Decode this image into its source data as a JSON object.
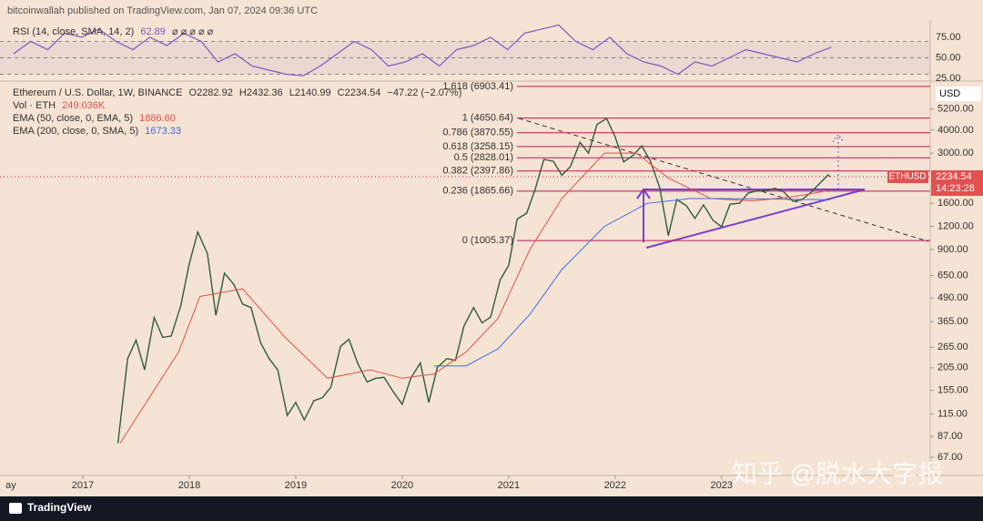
{
  "header": "bitcoinwallah published on TradingView.com, Jan 07, 2024 09:36 UTC",
  "footer": "TradingView",
  "watermark": "知乎 @脱水大字报",
  "chart_data": [
    {
      "type": "line",
      "log_scale": true,
      "ohlc": [
        "O2282.92",
        "H2432.36",
        "L2140.99",
        "C2234.54",
        "−47.22 (−2.07%)"
      ],
      "volume_title": "Vol · ETH",
      "volume_label": "249.036K",
      "currency": "USD",
      "symbol": "ETHUSD",
      "countdown": "14:23:28",
      "price_value": 2234.54,
      "price_label": "2234.54",
      "xlim": [
        2016.29,
        2024.96
      ],
      "xticks": [
        2017,
        2018,
        2019,
        2020,
        2021,
        2022,
        2023
      ],
      "xtick_partial": "ay",
      "ylim": [
        53.4,
        7300
      ],
      "yticks": [
        {
          "value": 5200,
          "label": "5200.00"
        },
        {
          "value": 4000,
          "label": "4000.00"
        },
        {
          "value": 3000,
          "label": "3000.00"
        },
        {
          "value": 1600,
          "label": "1600.00"
        },
        {
          "value": 1200,
          "label": "1200.00"
        },
        {
          "value": 900,
          "label": "900.00"
        },
        {
          "value": 650,
          "label": "650.00"
        },
        {
          "value": 490,
          "label": "490.00"
        },
        {
          "value": 365,
          "label": "365.00"
        },
        {
          "value": 265,
          "label": "265.00"
        },
        {
          "value": 205,
          "label": "205.00"
        },
        {
          "value": 155,
          "label": "155.00"
        },
        {
          "value": 115,
          "label": "115.00"
        },
        {
          "value": 87,
          "label": "87.00"
        },
        {
          "value": 67,
          "label": "67.00"
        }
      ],
      "levels": [
        {
          "value": 6903.41,
          "label": "1.618 (6903.41)"
        },
        {
          "value": 4650.64,
          "label": "1 (4650.64)"
        },
        {
          "value": 3870.55,
          "label": "0.786 (3870.55)"
        },
        {
          "value": 3258.15,
          "label": "0.618 (3258.15)"
        },
        {
          "value": 2828.01,
          "label": "0.5 (2828.01)"
        },
        {
          "value": 2397.86,
          "label": "0.382 (2397.86)"
        },
        {
          "value": 1865.66,
          "label": "0.236 (1865.66)"
        },
        {
          "value": 1005.37,
          "label": "0 (1005.37)"
        }
      ],
      "series": [
        {
          "name": "Ethereum / U.S. Dollar, 1W, BINANCE",
          "color": "#2f5d3a",
          "x": [
            2017.33,
            2017.42,
            2017.5,
            2017.58,
            2017.67,
            2017.75,
            2017.83,
            2017.92,
            2018.0,
            2018.08,
            2018.17,
            2018.25,
            2018.33,
            2018.42,
            2018.5,
            2018.58,
            2018.67,
            2018.75,
            2018.83,
            2018.92,
            2019.0,
            2019.08,
            2019.17,
            2019.25,
            2019.33,
            2019.42,
            2019.5,
            2019.58,
            2019.67,
            2019.75,
            2019.83,
            2019.92,
            2020.0,
            2020.08,
            2020.17,
            2020.25,
            2020.33,
            2020.42,
            2020.5,
            2020.58,
            2020.67,
            2020.75,
            2020.83,
            2020.92,
            2021.0,
            2021.08,
            2021.17,
            2021.25,
            2021.33,
            2021.42,
            2021.5,
            2021.58,
            2021.67,
            2021.75,
            2021.83,
            2021.92,
            2022.0,
            2022.08,
            2022.17,
            2022.25,
            2022.33,
            2022.42,
            2022.5,
            2022.58,
            2022.67,
            2022.75,
            2022.83,
            2022.92,
            2023.0,
            2023.08,
            2023.17,
            2023.25,
            2023.33,
            2023.42,
            2023.5,
            2023.58,
            2023.67,
            2023.75,
            2023.83,
            2023.92,
            2024.0,
            2024.02
          ],
          "values": [
            80,
            230,
            290,
            200,
            385,
            300,
            305,
            445,
            755,
            1120,
            855,
            395,
            670,
            580,
            455,
            435,
            280,
            230,
            200,
            113,
            133,
            107,
            136,
            141,
            161,
            268,
            293,
            218,
            172,
            180,
            182,
            151,
            130,
            180,
            218,
            133,
            206,
            230,
            225,
            345,
            435,
            360,
            386,
            615,
            737,
            1314,
            1417,
            1918,
            2773,
            2707,
            2275,
            2536,
            3433,
            3001,
            4288,
            4631,
            3683,
            2688,
            2920,
            3282,
            2730,
            1942,
            1070,
            1680,
            1553,
            1328,
            1572,
            1295,
            1196,
            1585,
            1605,
            1822,
            1870,
            1873,
            1934,
            1856,
            1645,
            1671,
            1815,
            2050,
            2282,
            2234.54
          ]
        },
        {
          "name": "EMA (50, close, 0, EMA, 5)",
          "color": "#e0514f",
          "last_label": "1886.60",
          "x": [
            2017.35,
            2017.9,
            2018.1,
            2018.5,
            2018.9,
            2019.3,
            2019.7,
            2020.0,
            2020.3,
            2020.6,
            2020.9,
            2021.2,
            2021.5,
            2021.9,
            2022.2,
            2022.5,
            2022.9,
            2023.3,
            2023.7,
            2024.02
          ],
          "values": [
            80,
            250,
            500,
            550,
            300,
            180,
            200,
            180,
            190,
            250,
            380,
            900,
            1700,
            3000,
            3000,
            2200,
            1700,
            1650,
            1750,
            1886.6
          ]
        },
        {
          "name": "EMA (200, close, 0, SMA, 5)",
          "color": "#3d6fe0",
          "last_label": "1673.33",
          "x": [
            2020.3,
            2020.6,
            2020.9,
            2021.2,
            2021.5,
            2021.9,
            2022.3,
            2022.7,
            2023.0,
            2023.5,
            2024.02
          ],
          "values": [
            210,
            210,
            260,
            400,
            700,
            1200,
            1600,
            1700,
            1700,
            1690,
            1673.33
          ]
        }
      ]
    },
    {
      "type": "line",
      "title": "RSI (14, close, SMA, 14, 2)",
      "value_label": "62.89",
      "symbols": "⌀ ⌀ ⌀ ⌀ ⌀",
      "ylim": [
        22.8,
        96
      ],
      "yticks": [
        {
          "value": 75,
          "label": "75.00"
        },
        {
          "value": 50,
          "label": "50.00"
        },
        {
          "value": 25,
          "label": "25.00"
        }
      ],
      "bands": [
        70,
        50,
        30
      ],
      "series": [
        {
          "color": "#7e57c2",
          "x": [
            2016.35,
            2016.51,
            2016.67,
            2016.83,
            2016.99,
            2017.15,
            2017.31,
            2017.47,
            2017.63,
            2017.79,
            2017.95,
            2018.11,
            2018.27,
            2018.43,
            2018.59,
            2018.75,
            2018.91,
            2019.07,
            2019.23,
            2019.39,
            2019.55,
            2019.71,
            2019.87,
            2020.03,
            2020.19,
            2020.35,
            2020.51,
            2020.67,
            2020.83,
            2020.99,
            2021.15,
            2021.31,
            2021.47,
            2021.63,
            2021.79,
            2021.95,
            2022.11,
            2022.27,
            2022.43,
            2022.59,
            2022.75,
            2022.91,
            2023.07,
            2023.23,
            2023.39,
            2023.55,
            2023.71,
            2023.87,
            2024.03
          ],
          "values": [
            55,
            70,
            60,
            80,
            75,
            85,
            70,
            60,
            75,
            65,
            80,
            70,
            45,
            55,
            40,
            35,
            30,
            28,
            40,
            55,
            70,
            60,
            40,
            45,
            55,
            40,
            60,
            65,
            75,
            60,
            80,
            85,
            90,
            70,
            60,
            75,
            55,
            45,
            40,
            30,
            45,
            40,
            50,
            60,
            55,
            50,
            45,
            55,
            62.89
          ]
        }
      ]
    }
  ]
}
